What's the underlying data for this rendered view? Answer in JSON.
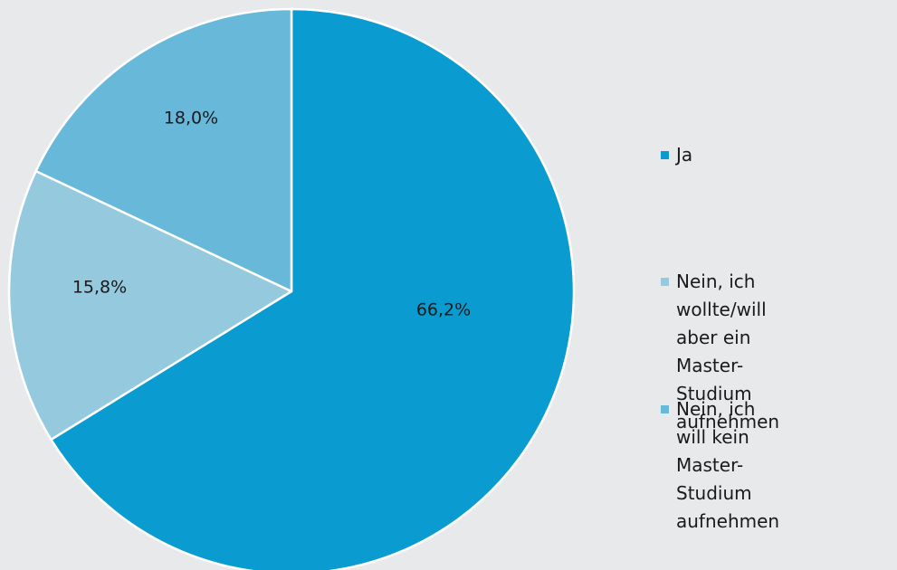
{
  "chart_data": {
    "type": "pie",
    "title": "",
    "legend_position": "right",
    "start_angle_deg": 0,
    "direction": "clockwise",
    "slices": [
      {
        "label": "Ja",
        "value": 66.2,
        "value_label": "66,2%",
        "color": "#0a9bd0"
      },
      {
        "label": "Nein, ich wollte/will\naber ein Master-\nStudium aufnehmen",
        "value": 15.8,
        "value_label": "15,8%",
        "color": "#94c9de"
      },
      {
        "label": "Nein, ich will kein\nMaster-Studium\naufnehmen",
        "value": 18.0,
        "value_label": "18,0%",
        "color": "#68b8da"
      }
    ]
  }
}
